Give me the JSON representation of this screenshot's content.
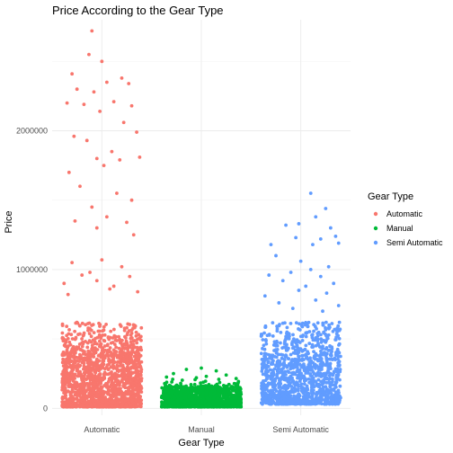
{
  "chart_data": {
    "type": "scatter",
    "title": "Price According to the Gear Type",
    "xlabel": "Gear Type",
    "ylabel": "Price",
    "categories": [
      "Automatic",
      "Manual",
      "Semi Automatic"
    ],
    "y_ticks": [
      0,
      1000000,
      2000000
    ],
    "y_tick_labels": [
      "0",
      "1000000",
      "2000000"
    ],
    "ylim": [
      -50000,
      2800000
    ],
    "grid": true,
    "legend": {
      "title": "Gear Type",
      "position": "right",
      "entries": [
        "Automatic",
        "Manual",
        "Semi Automatic"
      ]
    },
    "colors": {
      "Automatic": "#F8766D",
      "Manual": "#00BA38",
      "Semi Automatic": "#619CFF"
    },
    "series": [
      {
        "name": "Automatic",
        "category_index": 0,
        "bulk": {
          "count": 1400,
          "min": 10000,
          "max": 400000
        },
        "band": {
          "count": 260,
          "min": 400000,
          "max": 620000
        },
        "points": [
          [
            -0.1,
            2720000
          ],
          [
            0.0,
            2500000
          ],
          [
            -0.13,
            2550000
          ],
          [
            -0.3,
            2410000
          ],
          [
            0.2,
            2380000
          ],
          [
            -0.25,
            2300000
          ],
          [
            0.05,
            2350000
          ],
          [
            -0.08,
            2280000
          ],
          [
            0.27,
            2340000
          ],
          [
            -0.35,
            2200000
          ],
          [
            0.12,
            2210000
          ],
          [
            -0.18,
            2190000
          ],
          [
            0.3,
            2180000
          ],
          [
            -0.02,
            2140000
          ],
          [
            0.22,
            2060000
          ],
          [
            -0.28,
            1960000
          ],
          [
            0.35,
            1990000
          ],
          [
            -0.15,
            1930000
          ],
          [
            0.1,
            1850000
          ],
          [
            -0.05,
            1800000
          ],
          [
            0.18,
            1790000
          ],
          [
            0.38,
            1810000
          ],
          [
            -0.33,
            1700000
          ],
          [
            0.02,
            1750000
          ],
          [
            -0.22,
            1600000
          ],
          [
            0.15,
            1550000
          ],
          [
            -0.1,
            1450000
          ],
          [
            0.3,
            1500000
          ],
          [
            -0.27,
            1350000
          ],
          [
            0.05,
            1380000
          ],
          [
            0.25,
            1340000
          ],
          [
            -0.05,
            1300000
          ],
          [
            0.32,
            1250000
          ],
          [
            -0.3,
            1050000
          ],
          [
            0.0,
            1070000
          ],
          [
            -0.2,
            960000
          ],
          [
            0.28,
            950000
          ],
          [
            -0.05,
            920000
          ],
          [
            0.12,
            880000
          ],
          [
            0.36,
            840000
          ],
          [
            -0.38,
            900000
          ],
          [
            0.2,
            1020000
          ],
          [
            -0.12,
            980000
          ],
          [
            -0.34,
            820000
          ],
          [
            0.08,
            860000
          ]
        ]
      },
      {
        "name": "Manual",
        "category_index": 1,
        "bulk": {
          "count": 1100,
          "min": 10000,
          "max": 160000
        },
        "band": {
          "count": 40,
          "min": 160000,
          "max": 210000
        },
        "points": [
          [
            0.0,
            290000
          ],
          [
            -0.15,
            280000
          ],
          [
            0.15,
            270000
          ],
          [
            -0.28,
            250000
          ],
          [
            0.25,
            240000
          ],
          [
            0.05,
            230000
          ],
          [
            -0.05,
            220000
          ],
          [
            0.35,
            215000
          ],
          [
            -0.35,
            225000
          ]
        ]
      },
      {
        "name": "Semi Automatic",
        "category_index": 2,
        "bulk": {
          "count": 900,
          "min": 30000,
          "max": 350000
        },
        "band": {
          "count": 300,
          "min": 350000,
          "max": 620000
        },
        "points": [
          [
            0.1,
            1550000
          ],
          [
            0.25,
            1440000
          ],
          [
            0.15,
            1380000
          ],
          [
            -0.02,
            1330000
          ],
          [
            0.3,
            1300000
          ],
          [
            -0.15,
            1320000
          ],
          [
            0.35,
            1240000
          ],
          [
            0.2,
            1220000
          ],
          [
            -0.3,
            1180000
          ],
          [
            0.38,
            1190000
          ],
          [
            -0.05,
            1230000
          ],
          [
            0.12,
            1180000
          ],
          [
            -0.25,
            1100000
          ],
          [
            0.0,
            1060000
          ],
          [
            0.28,
            1020000
          ],
          [
            0.1,
            1000000
          ],
          [
            -0.1,
            980000
          ],
          [
            0.2,
            950000
          ],
          [
            -0.32,
            960000
          ],
          [
            -0.18,
            920000
          ],
          [
            0.33,
            900000
          ],
          [
            0.05,
            880000
          ],
          [
            -0.02,
            850000
          ],
          [
            0.26,
            830000
          ],
          [
            -0.36,
            810000
          ],
          [
            0.15,
            780000
          ],
          [
            -0.22,
            760000
          ],
          [
            0.38,
            740000
          ],
          [
            -0.08,
            720000
          ],
          [
            0.22,
            700000
          ]
        ]
      }
    ]
  }
}
